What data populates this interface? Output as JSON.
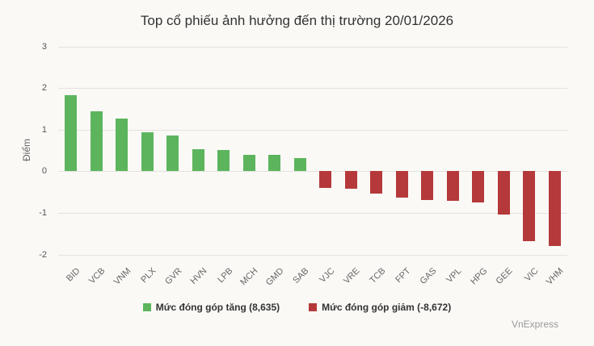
{
  "chart_data": {
    "type": "bar",
    "title": "Top cổ phiếu ảnh hưởng đến thị trường 20/01/2026",
    "xlabel": "",
    "ylabel": "Điểm",
    "ylim": [
      -2,
      3
    ],
    "yticks": [
      3,
      2,
      1,
      0,
      -1,
      -2
    ],
    "grid": true,
    "legend_position": "bottom",
    "categories": [
      "BID",
      "VCB",
      "VNM",
      "PLX",
      "GVR",
      "HVN",
      "LPB",
      "MCH",
      "GMD",
      "SAB",
      "VJC",
      "VRE",
      "TCB",
      "FPT",
      "GAS",
      "VPL",
      "HPG",
      "GEE",
      "VIC",
      "VHM"
    ],
    "values": [
      1.83,
      1.44,
      1.27,
      0.94,
      0.86,
      0.53,
      0.51,
      0.39,
      0.39,
      0.32,
      -0.41,
      -0.43,
      -0.53,
      -0.63,
      -0.69,
      -0.71,
      -0.75,
      -1.04,
      -1.68,
      -1.79
    ],
    "series": [
      {
        "name": "Mức đóng góp tăng (8,635)",
        "color": "#5cb55c",
        "categories": [
          "BID",
          "VCB",
          "VNM",
          "PLX",
          "GVR",
          "HVN",
          "LPB",
          "MCH",
          "GMD",
          "SAB"
        ],
        "values": [
          1.83,
          1.44,
          1.27,
          0.94,
          0.86,
          0.53,
          0.51,
          0.39,
          0.39,
          0.32
        ]
      },
      {
        "name": "Mức đóng góp giảm (-8,672)",
        "color": "#b5393a",
        "categories": [
          "VJC",
          "VRE",
          "TCB",
          "FPT",
          "GAS",
          "VPL",
          "HPG",
          "GEE",
          "VIC",
          "VHM"
        ],
        "values": [
          -0.41,
          -0.43,
          -0.53,
          -0.63,
          -0.69,
          -0.71,
          -0.75,
          -1.04,
          -1.68,
          -1.79
        ]
      }
    ]
  },
  "credit": "VnExpress",
  "colors": {
    "positive": "#5cb55c",
    "negative": "#b5393a",
    "background": "#faf9f6"
  }
}
